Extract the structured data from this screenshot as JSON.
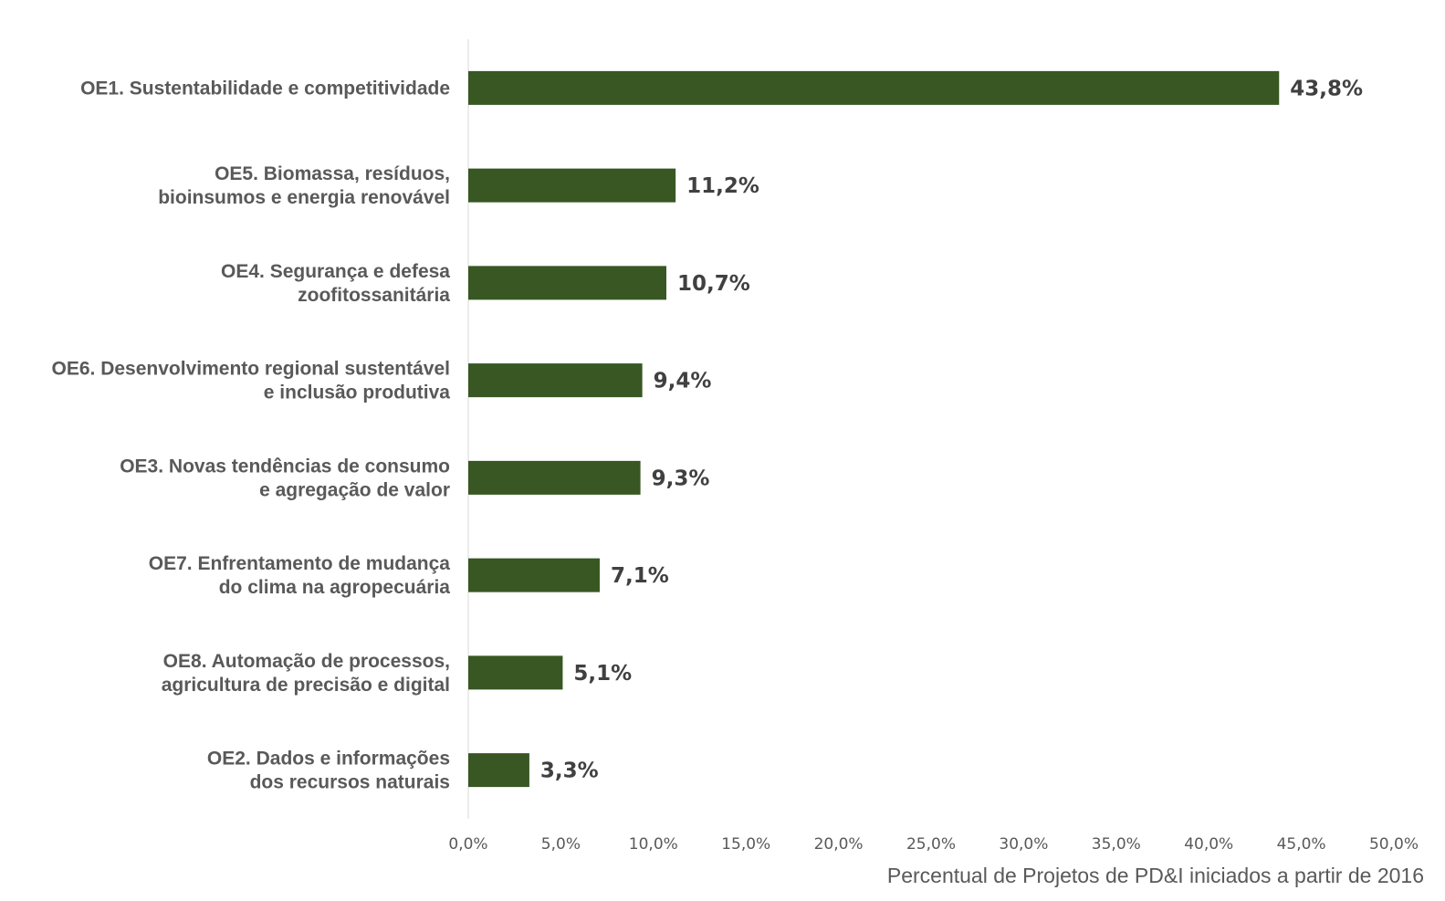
{
  "chart_data": {
    "type": "bar",
    "orientation": "horizontal",
    "categories": [
      [
        "OE1. Sustentabilidade e competitividade"
      ],
      [
        "OE5. Biomassa, resíduos,",
        "bioinsumos e energia renovável"
      ],
      [
        "OE4. Segurança e defesa",
        "zoofitossanitária"
      ],
      [
        "OE6. Desenvolvimento regional sustentável",
        "e inclusão produtiva"
      ],
      [
        "OE3. Novas tendências de consumo",
        "e agregação de valor"
      ],
      [
        "OE7. Enfrentamento de mudança",
        "do clima na agropecuária"
      ],
      [
        "OE8. Automação de processos,",
        "agricultura de precisão e digital"
      ],
      [
        "OE2. Dados e informações",
        "dos recursos naturais"
      ]
    ],
    "values": [
      43.8,
      11.2,
      10.7,
      9.4,
      9.3,
      7.1,
      5.1,
      3.3
    ],
    "value_labels": [
      "43,8%",
      "11,2%",
      "10,7%",
      "9,4%",
      "9,3%",
      "7,1%",
      "5,1%",
      "3,3%"
    ],
    "xlim": [
      0,
      50
    ],
    "x_ticks": [
      "0,0%",
      "5,0%",
      "10,0%",
      "15,0%",
      "20,0%",
      "25,0%",
      "30,0%",
      "35,0%",
      "40,0%",
      "45,0%",
      "50,0%"
    ],
    "xlabel": "Percentual de Projetos de PD&I iniciados a partir de 2016",
    "ylabel": "",
    "grid": false,
    "bar_color": "#385723",
    "axis_color": "#d9d9d9"
  }
}
